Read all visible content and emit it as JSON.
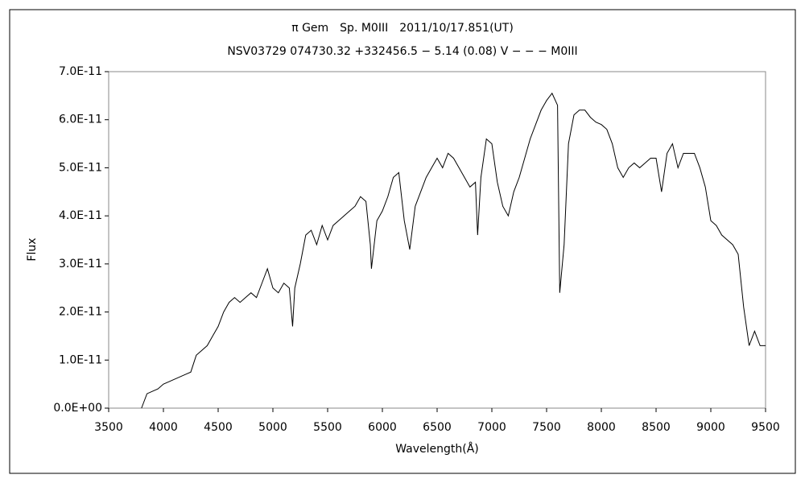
{
  "chart_data": {
    "type": "line",
    "title": "π Gem　Sp. M0III　2011/10/17.851(UT)",
    "subtitle": "NSV03729 074730.32 +332456.5 − 5.14 (0.08) V − − − M0III",
    "x_label": "Wavelength(Å)",
    "y_label": "Flux",
    "color": "#000000",
    "x": [
      3800,
      3850,
      3900,
      3950,
      4000,
      4050,
      4100,
      4150,
      4200,
      4250,
      4300,
      4350,
      4400,
      4450,
      4500,
      4550,
      4600,
      4650,
      4700,
      4750,
      4800,
      4850,
      4900,
      4950,
      5000,
      5050,
      5100,
      5150,
      5180,
      5200,
      5250,
      5300,
      5350,
      5400,
      5450,
      5500,
      5550,
      5600,
      5650,
      5700,
      5750,
      5800,
      5850,
      5890,
      5900,
      5950,
      6000,
      6050,
      6100,
      6150,
      6200,
      6250,
      6300,
      6350,
      6400,
      6450,
      6500,
      6550,
      6600,
      6650,
      6700,
      6750,
      6800,
      6850,
      6870,
      6900,
      6950,
      7000,
      7050,
      7100,
      7150,
      7200,
      7250,
      7300,
      7350,
      7400,
      7450,
      7500,
      7550,
      7600,
      7620,
      7660,
      7700,
      7750,
      7800,
      7850,
      7900,
      7950,
      8000,
      8050,
      8100,
      8150,
      8200,
      8250,
      8300,
      8350,
      8400,
      8450,
      8500,
      8550,
      8600,
      8650,
      8700,
      8750,
      8800,
      8850,
      8900,
      8950,
      9000,
      9050,
      9100,
      9150,
      9200,
      9250,
      9300,
      9350,
      9400,
      9450,
      9500
    ],
    "values": [
      0.0,
      3e-12,
      3.5e-12,
      4e-12,
      5e-12,
      5.5e-12,
      6e-12,
      6.5e-12,
      7e-12,
      7.5e-12,
      1.1e-11,
      1.2e-11,
      1.3e-11,
      1.5e-11,
      1.7e-11,
      2e-11,
      2.2e-11,
      2.3e-11,
      2.2e-11,
      2.3e-11,
      2.4e-11,
      2.3e-11,
      2.6e-11,
      2.9e-11,
      2.5e-11,
      2.4e-11,
      2.6e-11,
      2.5e-11,
      1.7e-11,
      2.5e-11,
      3e-11,
      3.6e-11,
      3.7e-11,
      3.4e-11,
      3.8e-11,
      3.5e-11,
      3.8e-11,
      3.9e-11,
      4e-11,
      4.1e-11,
      4.2e-11,
      4.4e-11,
      4.3e-11,
      3.4e-11,
      2.9e-11,
      3.9e-11,
      4.1e-11,
      4.4e-11,
      4.8e-11,
      4.9e-11,
      3.9e-11,
      3.3e-11,
      4.2e-11,
      4.5e-11,
      4.8e-11,
      5e-11,
      5.2e-11,
      5e-11,
      5.3e-11,
      5.2e-11,
      5e-11,
      4.8e-11,
      4.6e-11,
      4.7e-11,
      3.6e-11,
      4.8e-11,
      5.6e-11,
      5.5e-11,
      4.7e-11,
      4.2e-11,
      4e-11,
      4.5e-11,
      4.8e-11,
      5.2e-11,
      5.6e-11,
      5.9e-11,
      6.2e-11,
      6.4e-11,
      6.55e-11,
      6.3e-11,
      2.4e-11,
      3.4e-11,
      5.5e-11,
      6.1e-11,
      6.2e-11,
      6.2e-11,
      6.05e-11,
      5.95e-11,
      5.9e-11,
      5.8e-11,
      5.5e-11,
      5e-11,
      4.8e-11,
      5e-11,
      5.1e-11,
      5e-11,
      5.1e-11,
      5.2e-11,
      5.2e-11,
      4.5e-11,
      5.3e-11,
      5.5e-11,
      5e-11,
      5.3e-11,
      5.3e-11,
      5.3e-11,
      5e-11,
      4.6e-11,
      3.9e-11,
      3.8e-11,
      3.6e-11,
      3.5e-11,
      3.4e-11,
      3.2e-11,
      2.1e-11,
      1.3e-11,
      1.6e-11,
      1.3e-11,
      1.3e-11
    ],
    "xlim": [
      3500,
      9500
    ],
    "xticks": [
      3500,
      4000,
      4500,
      5000,
      5500,
      6000,
      6500,
      7000,
      7500,
      8000,
      8500,
      9000,
      9500
    ],
    "ylim": [
      0,
      7e-11
    ],
    "yticks": [
      {
        "value": 0,
        "label": "0.0E+00"
      },
      {
        "value": 1e-11,
        "label": "1.0E-11"
      },
      {
        "value": 2e-11,
        "label": "2.0E-11"
      },
      {
        "value": 3e-11,
        "label": "3.0E-11"
      },
      {
        "value": 4e-11,
        "label": "4.0E-11"
      },
      {
        "value": 5e-11,
        "label": "5.0E-11"
      },
      {
        "value": 6e-11,
        "label": "6.0E-11"
      },
      {
        "value": 7e-11,
        "label": "7.0E-11"
      }
    ],
    "grid": false
  }
}
